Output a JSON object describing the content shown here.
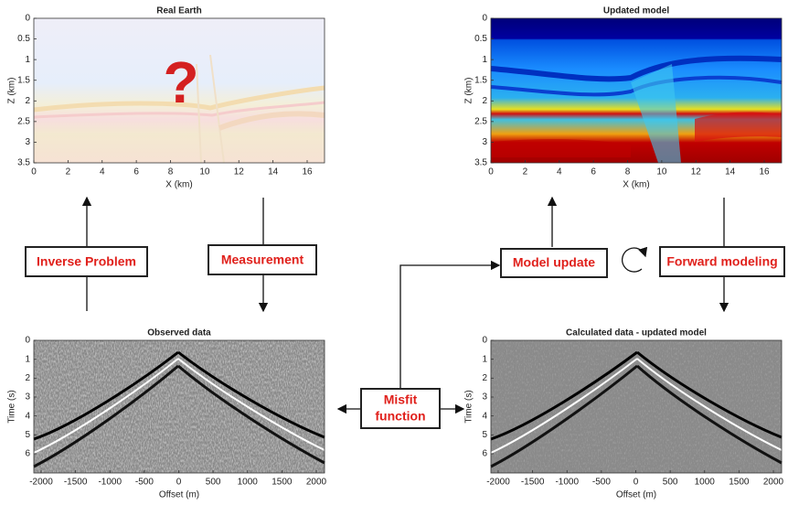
{
  "panels": [
    {
      "title": "Real Earth",
      "x_label": "X (km)",
      "y_label": "Z (km)",
      "xticks": [
        0,
        2,
        4,
        6,
        8,
        10,
        12,
        14,
        16
      ],
      "yticks": [
        0,
        0.5,
        1,
        1.5,
        2,
        2.5,
        3,
        3.5
      ],
      "overlay": "?"
    },
    {
      "title": "Updated model",
      "x_label": "X (km)",
      "y_label": "Z (km)",
      "xticks": [
        0,
        2,
        4,
        6,
        8,
        10,
        12,
        14,
        16
      ],
      "yticks": [
        0,
        0.5,
        1,
        1.5,
        2,
        2.5,
        3,
        3.5
      ]
    },
    {
      "title": "Observed data",
      "x_label": "Offset (m)",
      "y_label": "Time (s)",
      "xticks": [
        -2000,
        -1500,
        -1000,
        -500,
        0,
        500,
        1000,
        1500,
        2000
      ],
      "yticks": [
        0,
        1,
        2,
        3,
        4,
        5,
        6
      ]
    },
    {
      "title": "Calculated data - updated model",
      "x_label": "Offset (m)",
      "y_label": "Time (s)",
      "xticks": [
        -2000,
        -1500,
        -1000,
        -500,
        0,
        500,
        1000,
        1500,
        2000
      ],
      "yticks": [
        0,
        1,
        2,
        3,
        4,
        5,
        6
      ]
    }
  ],
  "boxes": [
    {
      "label": "Inverse Problem"
    },
    {
      "label": "Measurement"
    },
    {
      "label": "Model update"
    },
    {
      "label": "Forward modeling"
    }
  ],
  "misfit": {
    "lines": [
      "Misfit",
      "function"
    ]
  }
}
